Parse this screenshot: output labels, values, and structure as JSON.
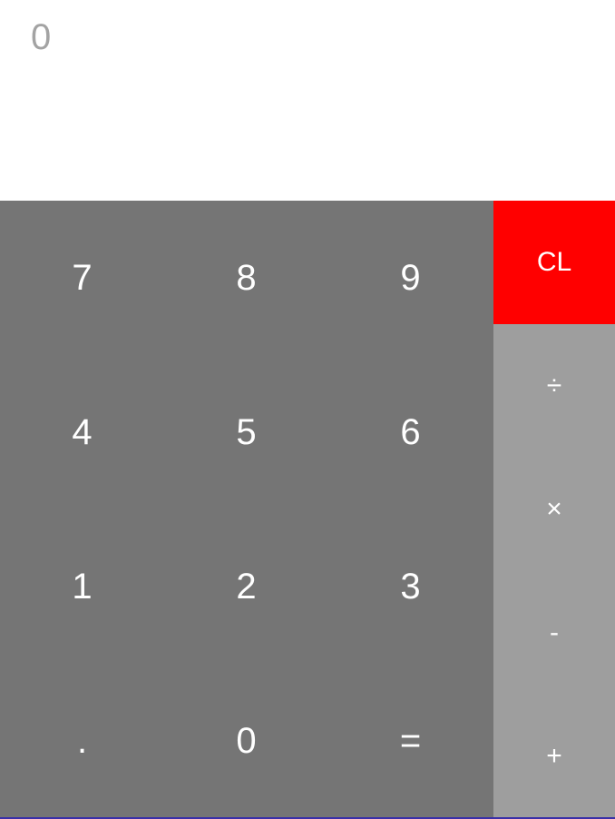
{
  "display": {
    "value": "0"
  },
  "colors": {
    "keypad_bg": "#757575",
    "ops_bg": "#9e9e9e",
    "clear_bg": "#ff0000",
    "display_text": "#a3a3a3",
    "key_text": "#ffffff"
  },
  "keypad": {
    "rows": [
      [
        "7",
        "8",
        "9"
      ],
      [
        "4",
        "5",
        "6"
      ],
      [
        "1",
        "2",
        "3"
      ],
      [
        ".",
        "0",
        "="
      ]
    ]
  },
  "operators": {
    "clear": "CL",
    "divide": "÷",
    "multiply": "×",
    "subtract": "-",
    "add": "+"
  }
}
